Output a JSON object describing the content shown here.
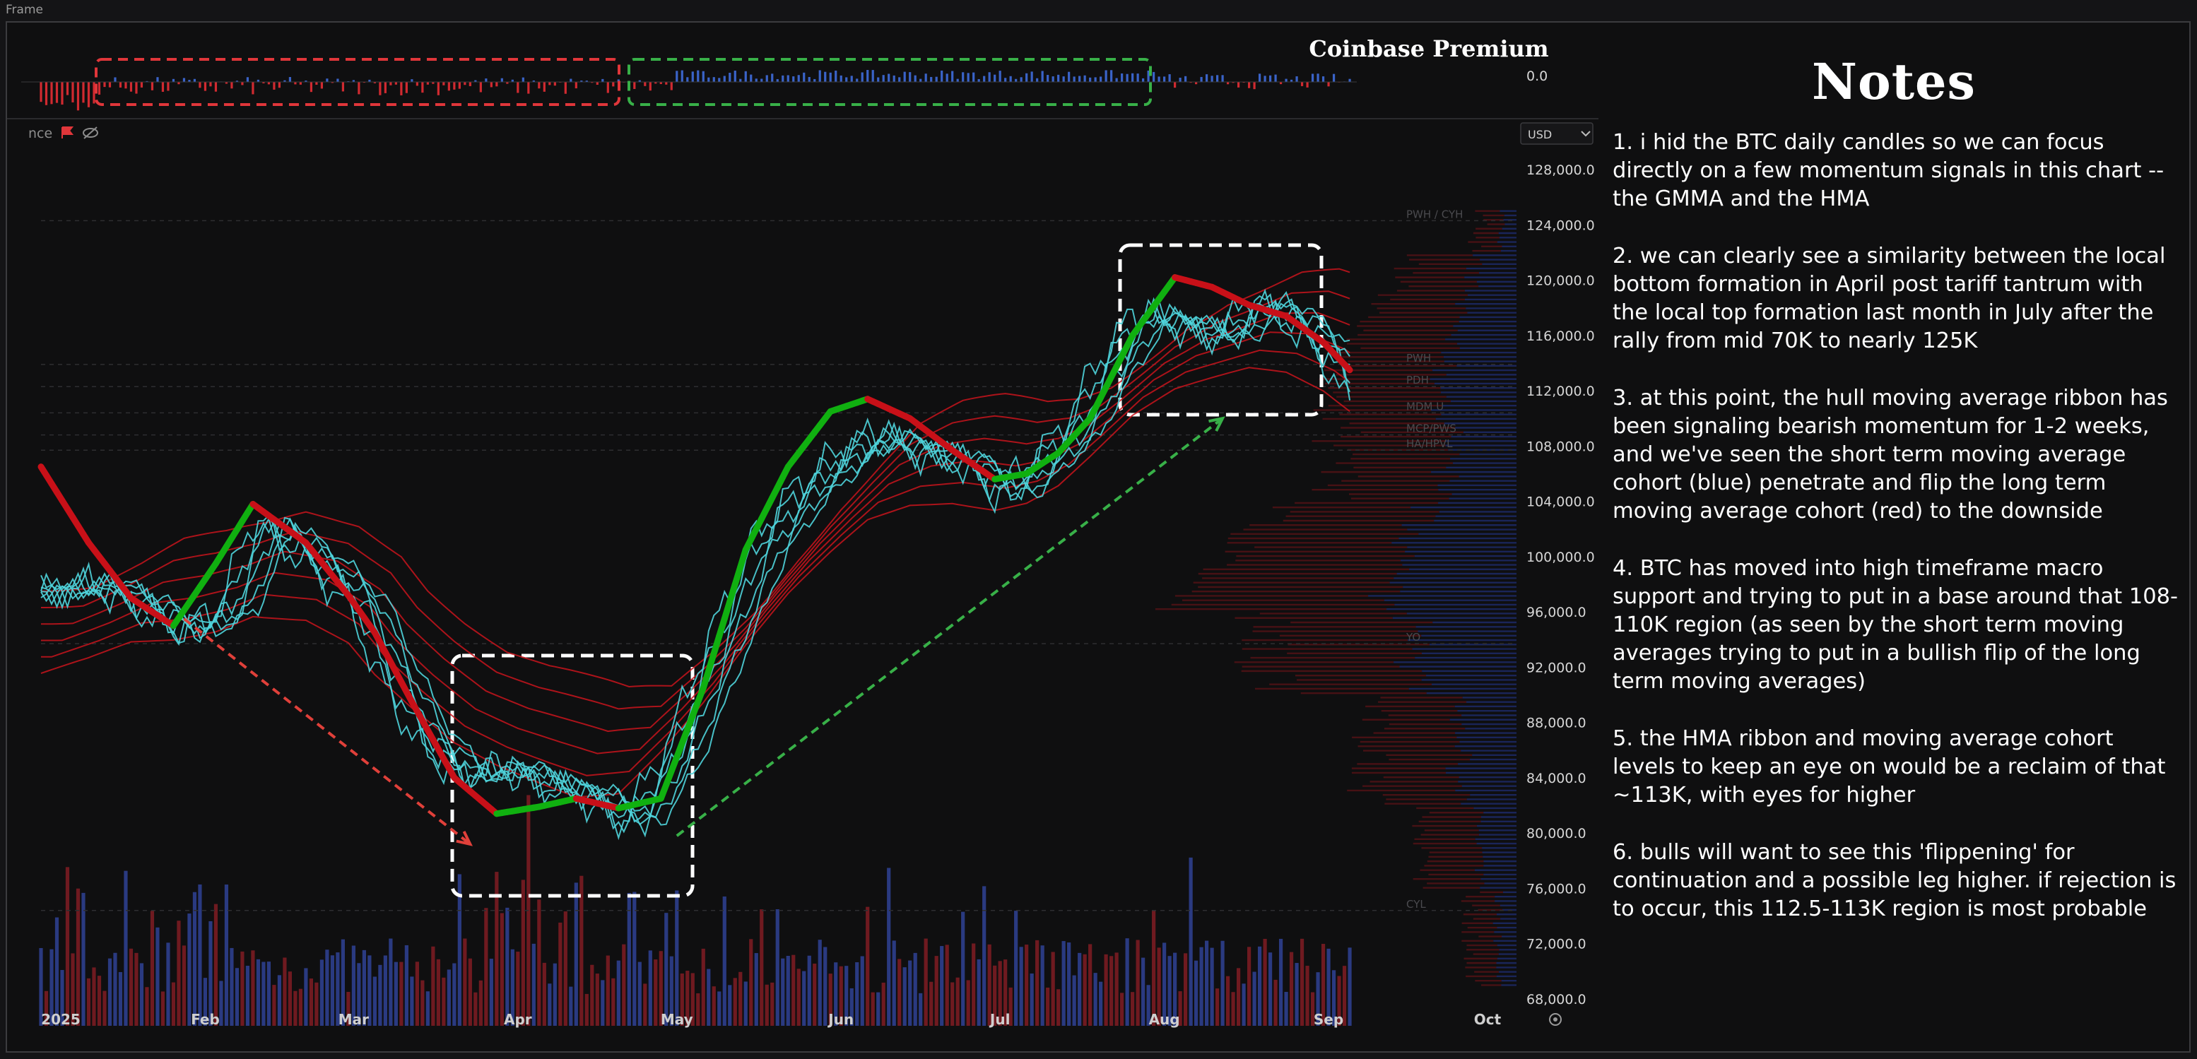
{
  "frame": {
    "label": "Frame"
  },
  "indicator_pane": {
    "title": "Coinbase Premium",
    "zero_label": "0.0",
    "legend_fragment": "nce"
  },
  "price_pane": {
    "currency": "USD",
    "axis_labels": [
      "128,000.0",
      "124,000.0",
      "120,000.0",
      "116,000.0",
      "112,000.0",
      "108,000.0",
      "104,000.0",
      "100,000.0",
      "96,000.0",
      "92,000.0",
      "88,000.0",
      "84,000.0",
      "80,000.0",
      "76,000.0",
      "72,000.0",
      "68,000.0"
    ],
    "month_labels": [
      "2025",
      "Feb",
      "Mar",
      "Apr",
      "May",
      "Jun",
      "Jul",
      "Aug",
      "Sep",
      "Oct"
    ],
    "level_tags": [
      "PWH / CYH",
      "PWH",
      "PDH",
      "MDM U",
      "MCP/PWS",
      "HA/HPVL",
      "YO",
      "CYL"
    ]
  },
  "colors": {
    "background": "#0f0f10",
    "hma_bull": "#10b010",
    "hma_bear": "#c81018",
    "gmma_short": "#4fd4dc",
    "gmma_long": "#c8141c",
    "volume_up": "#2d3f8e",
    "volume_down": "#7a1c22",
    "arrow_down": "#e0403a",
    "arrow_up": "#38b048",
    "highlight_box": "#ffffff"
  },
  "chart_data": {
    "type": "line",
    "title": "Coinbase Premium",
    "xlabel": "",
    "ylabel": "",
    "x_axis_type": "date",
    "xlim": [
      "2025-01-01",
      "2025-10-03"
    ],
    "ylim": [
      68000,
      130000
    ],
    "grid": false,
    "x": [
      "2025-01-01",
      "2025-01-10",
      "2025-01-18",
      "2025-01-26",
      "2025-02-03",
      "2025-02-10",
      "2025-02-20",
      "2025-02-28",
      "2025-03-05",
      "2025-03-12",
      "2025-03-20",
      "2025-03-28",
      "2025-04-05",
      "2025-04-12",
      "2025-04-20",
      "2025-04-28",
      "2025-05-06",
      "2025-05-14",
      "2025-05-22",
      "2025-05-30",
      "2025-06-06",
      "2025-06-14",
      "2025-06-22",
      "2025-06-30",
      "2025-07-06",
      "2025-07-12",
      "2025-07-18",
      "2025-07-26",
      "2025-08-03",
      "2025-08-10",
      "2025-08-17",
      "2025-08-24",
      "2025-08-31",
      "2025-09-05"
    ],
    "series": [
      {
        "values": [
          106500,
          101000,
          97000,
          95000,
          99500,
          103800,
          101000,
          97200,
          94500,
          89500,
          84000,
          81400,
          81900,
          82500,
          81800,
          82500,
          90500,
          100500,
          106500,
          110500,
          111400,
          110000,
          107700,
          105600,
          106000,
          107500,
          110000,
          116000,
          120200,
          119500,
          118200,
          117400,
          115500,
          113500
        ]
      },
      {
        "values": [
          97500,
          98000,
          96500,
          94500,
          96200,
          102500,
          99500,
          96500,
          92000,
          87000,
          84000,
          84800,
          83400,
          82900,
          80600,
          85500,
          93000,
          100500,
          104500,
          107200,
          108800,
          107600,
          106900,
          104500,
          106800,
          108900,
          113200,
          117600,
          116700,
          115800,
          118500,
          116800,
          114200,
          111000
        ]
      },
      {
        "values": [
          93000,
          94200,
          95500,
          95800,
          96500,
          97600,
          97200,
          95400,
          93000,
          90500,
          88000,
          86500,
          85400,
          84500,
          84800,
          87800,
          91200,
          95200,
          98800,
          101800,
          104200,
          105400,
          105700,
          105300,
          105800,
          107000,
          109000,
          111800,
          113600,
          114400,
          115200,
          115000,
          113800,
          112400
        ]
      }
    ],
    "annotations": [
      {
        "type": "arrow",
        "from": [
          "2025-01-28",
          95500
        ],
        "to": [
          "2025-03-23",
          79200
        ],
        "color": "red"
      },
      {
        "type": "arrow",
        "from": [
          "2025-05-01",
          79800
        ],
        "to": [
          "2025-08-12",
          110000
        ],
        "color": "green"
      }
    ]
  },
  "notes": {
    "title": "Notes",
    "items": [
      "1. i hid the BTC daily candles so we can focus directly on a few momentum signals in this chart -- the GMMA and the HMA",
      "2. we can clearly see a similarity between the local bottom formation in April post tariff tantrum with the local top formation last month in July after the rally from mid 70K to nearly 125K",
      "3. at this point, the hull moving average ribbon has been signaling bearish momentum for 1-2 weeks, and we've seen the short term moving average cohort (blue) penetrate and flip the long term moving average cohort (red) to the downside",
      "4. BTC has moved into high timeframe macro support and trying to put in a base around that 108-110K region (as seen by the short term moving averages trying to put in a bullish flip of the long term moving averages)",
      "5. the HMA ribbon and moving average cohort levels to keep an eye on would be a reclaim of that ~113K, with eyes for higher",
      "6. bulls will want to see this 'flippening' for continuation and a possible leg higher. if rejection is to occur, this 112.5-113K region is most probable"
    ]
  }
}
